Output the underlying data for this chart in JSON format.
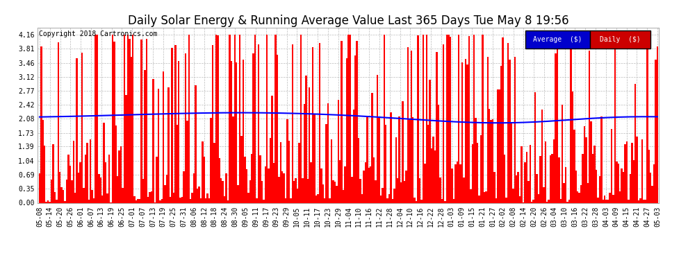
{
  "title": "Daily Solar Energy & Running Average Value Last 365 Days Tue May 8 19:56",
  "copyright": "Copyright 2018 Cartronics.com",
  "background_color": "#ffffff",
  "plot_bg_color": "#ffffff",
  "grid_color": "#bbbbbb",
  "bar_color": "#ff0000",
  "line_color": "#0000ff",
  "yticks": [
    0.0,
    0.35,
    0.69,
    1.04,
    1.39,
    1.73,
    2.08,
    2.42,
    2.77,
    3.12,
    3.46,
    3.81,
    4.16
  ],
  "ylim": [
    0.0,
    4.33
  ],
  "legend_avg_bg": "#0000cc",
  "legend_daily_bg": "#cc0000",
  "legend_avg_text": "Average  ($)",
  "legend_daily_text": "Daily  ($)",
  "n_bars": 365,
  "title_fontsize": 12,
  "tick_fontsize": 7,
  "copyright_fontsize": 7,
  "xtick_labels": [
    "05-08",
    "05-14",
    "05-20",
    "05-26",
    "06-01",
    "06-07",
    "06-13",
    "06-19",
    "06-25",
    "07-01",
    "07-07",
    "07-13",
    "07-19",
    "07-25",
    "07-31",
    "08-06",
    "08-12",
    "08-18",
    "08-24",
    "08-30",
    "09-05",
    "09-11",
    "09-17",
    "09-23",
    "09-29",
    "10-05",
    "10-11",
    "10-17",
    "10-23",
    "10-29",
    "11-04",
    "11-10",
    "11-16",
    "11-22",
    "11-28",
    "12-04",
    "12-10",
    "12-16",
    "12-22",
    "12-28",
    "01-03",
    "01-09",
    "01-15",
    "01-21",
    "01-27",
    "02-02",
    "02-08",
    "02-14",
    "02-20",
    "02-26",
    "03-04",
    "03-10",
    "03-16",
    "03-22",
    "03-28",
    "04-03",
    "04-09",
    "04-15",
    "04-21",
    "04-27",
    "05-03"
  ]
}
